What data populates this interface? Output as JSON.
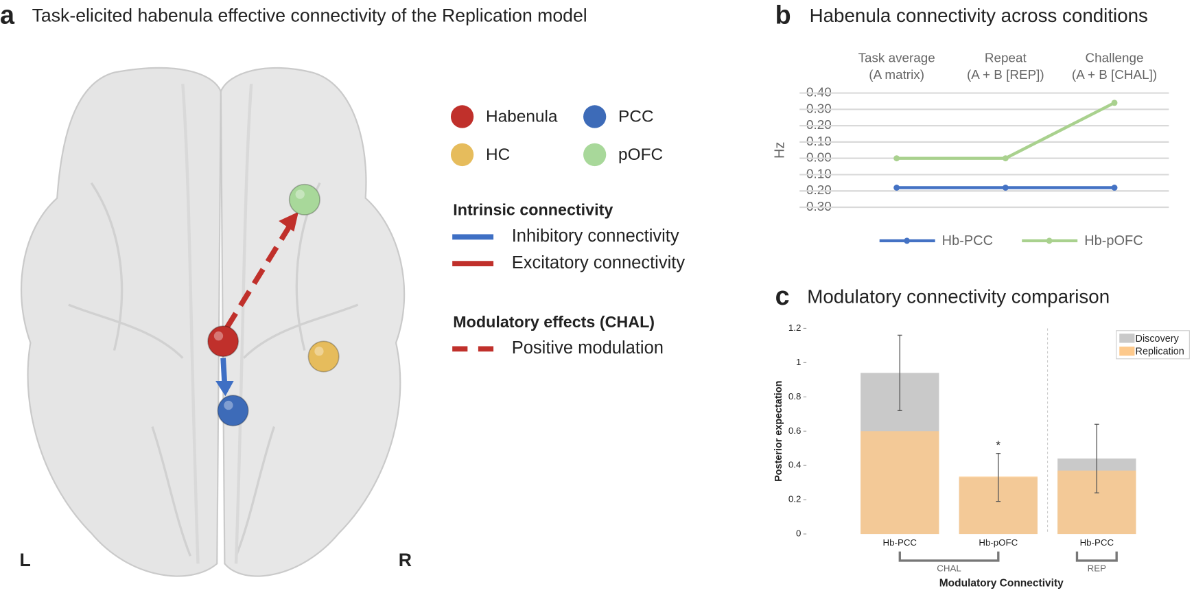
{
  "panel_a": {
    "label": "a",
    "title": "Task-elicited habenula effective connectivity of the Replication model",
    "nodes": [
      {
        "label": "Habenula",
        "color": "#c0302b"
      },
      {
        "label": "PCC",
        "color": "#3d6bb8"
      },
      {
        "label": "HC",
        "color": "#e6bc5c"
      },
      {
        "label": "pOFC",
        "color": "#a8d89a"
      }
    ],
    "intrinsic": {
      "title": "Intrinsic connectivity",
      "items": [
        {
          "label": "Inhibitory connectivity",
          "color": "#3e6fc4"
        },
        {
          "label": "Excitatory connectivity",
          "color": "#c0302b"
        }
      ]
    },
    "modulatory": {
      "title": "Modulatory effects (CHAL)",
      "items": [
        {
          "label": "Positive modulation",
          "color": "#c0302b"
        }
      ]
    },
    "sides": [
      "L",
      "R"
    ]
  },
  "chart_data": [
    {
      "type": "line",
      "panel_label": "b",
      "title": "Habenula connectivity across conditions",
      "categories": [
        [
          "Task average",
          "(A matrix)"
        ],
        [
          "Repeat",
          "(A + B [REP])"
        ],
        [
          "Challenge",
          "(A + B [CHAL])"
        ]
      ],
      "ylabel": "Hz",
      "ylim": [
        -0.3,
        0.4
      ],
      "yticks": [
        {
          "value": 0.4,
          "label": "0.40"
        },
        {
          "value": 0.3,
          "label": "0.30"
        },
        {
          "value": 0.2,
          "label": "0.20"
        },
        {
          "value": 0.1,
          "label": "0.10"
        },
        {
          "value": 0,
          "label": "0.00"
        },
        {
          "value": -0.1,
          "label": "-0.10"
        },
        {
          "value": -0.2,
          "label": "-0.20"
        },
        {
          "value": -0.3,
          "label": "-0.30"
        }
      ],
      "grid": true,
      "legend": "bottom",
      "series": [
        {
          "name": "Hb-PCC",
          "color": "#4472c4",
          "values": [
            -0.18,
            -0.18,
            -0.18
          ]
        },
        {
          "name": "Hb-pOFC",
          "color": "#a9d18e",
          "values": [
            0,
            0,
            0.34
          ]
        }
      ]
    },
    {
      "type": "bar",
      "panel_label": "c",
      "title": "Modulatory connectivity comparison",
      "categories": [
        "Hb-PCC",
        "Hb-pOFC",
        "Hb-PCC"
      ],
      "groups": [
        {
          "label": "CHAL",
          "categories": [
            0,
            1
          ]
        },
        {
          "label": "REP",
          "categories": [
            2
          ]
        }
      ],
      "xlabel": "Modulatory Connectivity",
      "ylabel": "Posterior expectation",
      "ylim": [
        0,
        1.2
      ],
      "yticks": [
        0,
        0.2,
        0.4,
        0.6,
        0.8,
        1,
        1.2
      ],
      "legend": "upper right",
      "series": [
        {
          "name": "Discovery",
          "color": "#c9c9c9",
          "values": [
            0.94,
            0.33,
            0.44
          ],
          "errors": [
            0.22,
            0.14,
            0.2
          ]
        },
        {
          "name": "Replication",
          "color": "#fdc98c",
          "values": [
            0.6,
            0.335,
            0.37
          ]
        }
      ],
      "annotations": [
        {
          "text": "*",
          "category": 1
        }
      ]
    }
  ]
}
